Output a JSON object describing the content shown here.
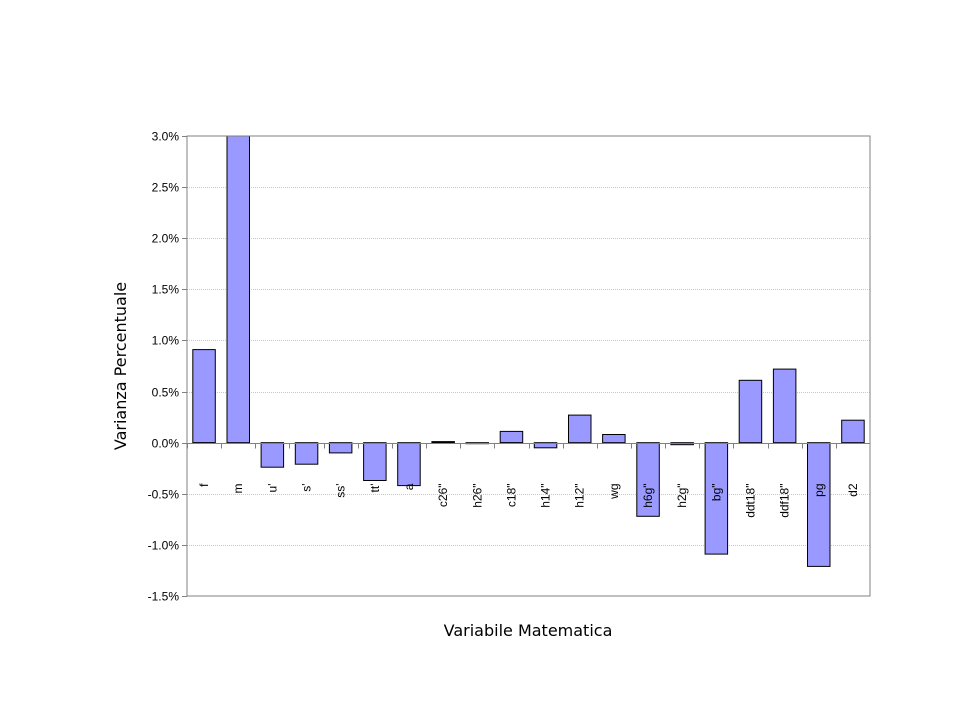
{
  "chart_data": {
    "type": "bar",
    "xlabel": "Variabile Matematica",
    "ylabel": "Varianza Percentuale",
    "ylim": [
      -1.5,
      3.0
    ],
    "yticks": [
      3.0,
      2.5,
      2.0,
      1.5,
      1.0,
      0.5,
      0.0,
      -0.5,
      -1.0,
      -1.5
    ],
    "ytick_labels": [
      "3.0%",
      "2.5%",
      "2.0%",
      "1.5%",
      "1.0%",
      "0.5%",
      "0.0%",
      "-0.5%",
      "-1.0%",
      "-1.5%"
    ],
    "grid": true,
    "legend": "none",
    "bar_color": "#9999ff",
    "categories": [
      "f",
      "m",
      "u'",
      "s'",
      "ss'",
      "tt'",
      "a",
      "c26\"",
      "h26\"",
      "c18\"",
      "h14\"",
      "h12\"",
      "wg",
      "h6g\"",
      "h2g\"",
      "bg\"",
      "ddt18\"",
      "ddf18\"",
      "pg",
      "d2"
    ],
    "values": [
      0.91,
      3.0,
      -0.24,
      -0.21,
      -0.1,
      -0.37,
      -0.42,
      0.01,
      -0.01,
      0.11,
      -0.05,
      0.27,
      0.08,
      -0.72,
      -0.02,
      -1.09,
      0.61,
      0.72,
      -1.21,
      0.22
    ]
  }
}
